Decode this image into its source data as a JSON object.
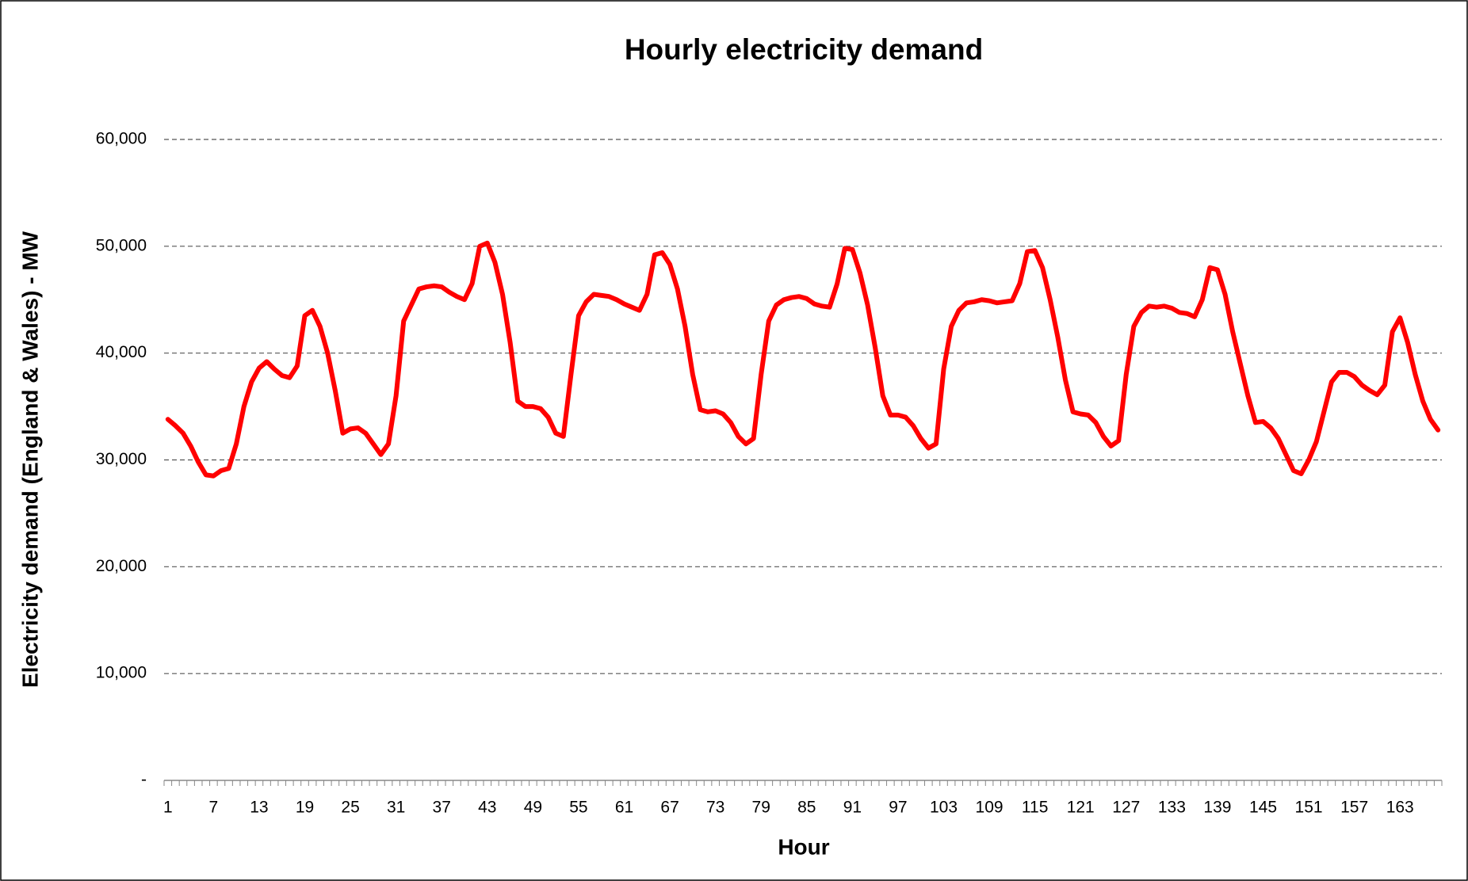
{
  "chart_data": {
    "type": "line",
    "title": "Hourly electricity demand",
    "x_label": "Hour",
    "y_label": "Electricity demand (England & Wales) - MW",
    "categories": [
      1,
      null,
      null,
      null,
      null,
      null,
      7,
      null,
      null,
      null,
      null,
      null,
      13,
      null,
      null,
      null,
      null,
      null,
      19,
      null,
      null,
      null,
      null,
      null,
      25,
      null,
      null,
      null,
      null,
      null,
      31,
      null,
      null,
      null,
      null,
      null,
      37,
      null,
      null,
      null,
      null,
      null,
      43,
      null,
      null,
      null,
      null,
      null,
      49,
      null,
      null,
      null,
      null,
      null,
      55,
      null,
      null,
      null,
      null,
      null,
      61,
      null,
      null,
      null,
      null,
      null,
      67,
      null,
      null,
      null,
      null,
      null,
      73,
      null,
      null,
      null,
      null,
      null,
      79,
      null,
      null,
      null,
      null,
      null,
      85,
      null,
      null,
      null,
      null,
      null,
      91,
      null,
      null,
      null,
      null,
      null,
      97,
      null,
      null,
      null,
      null,
      null,
      103,
      null,
      null,
      null,
      null,
      null,
      109,
      null,
      null,
      null,
      null,
      null,
      115,
      null,
      null,
      null,
      null,
      null,
      121,
      null,
      null,
      null,
      null,
      null,
      127,
      null,
      null,
      null,
      null,
      null,
      133,
      null,
      null,
      null,
      null,
      null,
      139,
      null,
      null,
      null,
      null,
      null,
      145,
      null,
      null,
      null,
      null,
      null,
      151,
      null,
      null,
      null,
      null,
      null,
      157,
      null,
      null,
      null,
      null,
      null,
      163,
      null,
      null,
      null,
      null,
      null
    ],
    "series": [
      {
        "color": "#ff0000",
        "values": [
          33800,
          33200,
          32500,
          31300,
          29800,
          28600,
          28500,
          29000,
          29200,
          31500,
          35000,
          37300,
          38600,
          39200,
          38500,
          37900,
          37700,
          38800,
          43500,
          44000,
          42500,
          40000,
          36500,
          32500,
          32900,
          33000,
          32500,
          31500,
          30500,
          31500,
          36000,
          43000,
          44500,
          46000,
          46200,
          46300,
          46200,
          45700,
          45300,
          45000,
          46500,
          50000,
          50300,
          48500,
          45500,
          41000,
          35500,
          35000,
          35000,
          34800,
          34000,
          32500,
          32200,
          38000,
          43500,
          44800,
          45500,
          45400,
          45300,
          45000,
          44600,
          44300,
          44000,
          45500,
          49200,
          49400,
          48300,
          46000,
          42500,
          38000,
          34700,
          34500,
          34600,
          34300,
          33500,
          32200,
          31500,
          32000,
          38000,
          43000,
          44500,
          45000,
          45200,
          45300,
          45100,
          44600,
          44400,
          44300,
          46500,
          49800,
          49700,
          47500,
          44500,
          40500,
          36000,
          34200,
          34200,
          34000,
          33200,
          32000,
          31100,
          31500,
          38500,
          42500,
          44000,
          44700,
          44800,
          45000,
          44900,
          44700,
          44800,
          44900,
          46500,
          49500,
          49600,
          48000,
          45000,
          41500,
          37500,
          34500,
          34300,
          34200,
          33500,
          32200,
          31300,
          31800,
          38000,
          42500,
          43800,
          44400,
          44300,
          44400,
          44200,
          43800,
          43700,
          43400,
          45000,
          48000,
          47800,
          45500,
          42000,
          39000,
          36000,
          33500,
          33600,
          33000,
          32000,
          30500,
          29000,
          28700,
          30000,
          31700,
          34500,
          37300,
          38200,
          38200,
          37800,
          37000,
          36500,
          36100,
          37000,
          42000,
          43300,
          41000,
          38000,
          35500,
          33800,
          32800
        ]
      }
    ],
    "ylim": [
      0,
      60000
    ],
    "yticks": [
      {
        "value": 0,
        "label": "-"
      },
      {
        "value": 10000,
        "label": "10,000"
      },
      {
        "value": 20000,
        "label": "20,000"
      },
      {
        "value": 30000,
        "label": "30,000"
      },
      {
        "value": 40000,
        "label": "40,000"
      },
      {
        "value": 50000,
        "label": "50,000"
      },
      {
        "value": 60000,
        "label": "60,000"
      }
    ],
    "grid": true
  }
}
